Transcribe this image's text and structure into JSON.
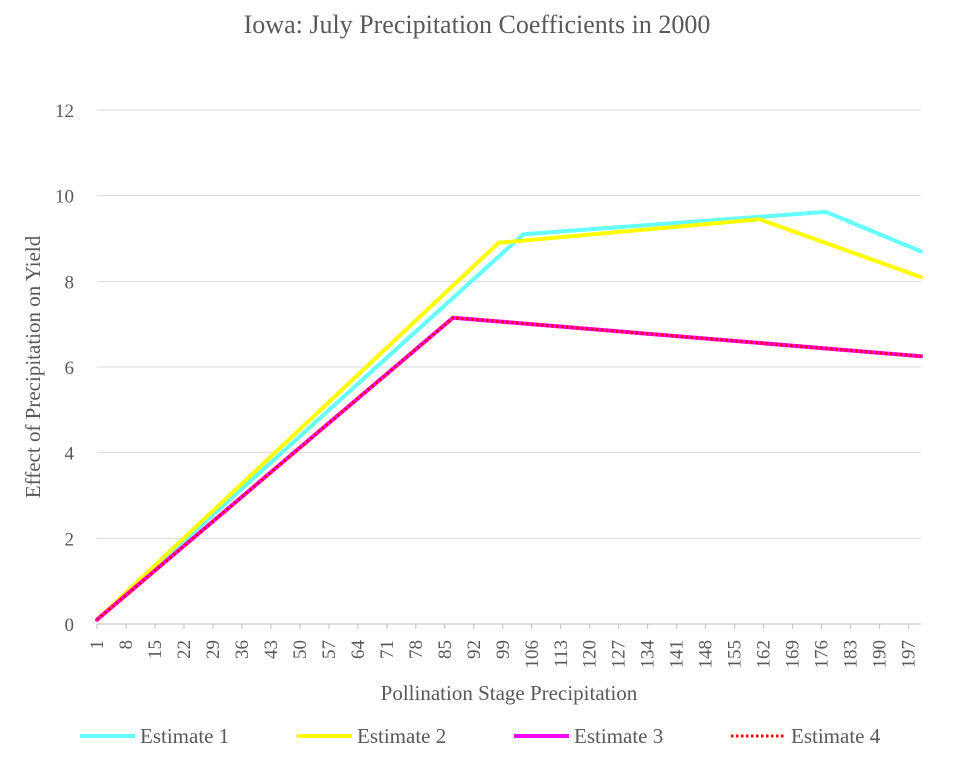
{
  "chart_data": {
    "type": "line",
    "title": "Iowa: July Precipitation Coefficients in 2000",
    "xlabel": "Pollination Stage Precipitation",
    "ylabel": "Effect of Precipitation on Yield",
    "ylim": [
      0,
      12
    ],
    "yticks": [
      "0",
      "2",
      "4",
      "6",
      "8",
      "10",
      "12"
    ],
    "xlim": [
      1,
      200
    ],
    "xticks": [
      "1",
      "8",
      "15",
      "22",
      "29",
      "36",
      "43",
      "50",
      "57",
      "64",
      "71",
      "78",
      "85",
      "92",
      "99",
      "106",
      "113",
      "120",
      "127",
      "134",
      "141",
      "148",
      "155",
      "162",
      "169",
      "176",
      "183",
      "190",
      "197"
    ],
    "grid": true,
    "legend_position": "bottom",
    "series": [
      {
        "name": "Estimate 1",
        "color": "#66FFFF",
        "style": "solid",
        "x": [
          1,
          104,
          177,
          200
        ],
        "y": [
          0.1,
          9.1,
          9.62,
          8.7
        ]
      },
      {
        "name": "Estimate 2",
        "color": "#FFFF00",
        "style": "solid",
        "x": [
          1,
          98,
          161,
          200
        ],
        "y": [
          0.1,
          8.9,
          9.45,
          8.1
        ]
      },
      {
        "name": "Estimate 3",
        "color": "#FF00FF",
        "style": "solid",
        "x": [
          1,
          87,
          200
        ],
        "y": [
          0.1,
          7.15,
          6.25
        ]
      },
      {
        "name": "Estimate 4",
        "color": "#FF0000",
        "style": "dotted",
        "x": [
          1,
          87,
          200
        ],
        "y": [
          0.1,
          7.15,
          6.25
        ]
      }
    ]
  }
}
